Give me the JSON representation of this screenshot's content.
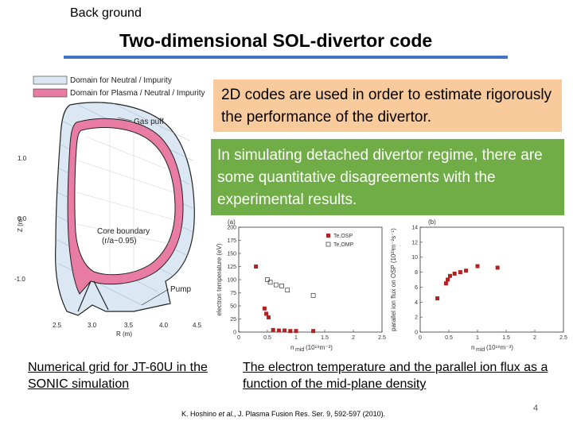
{
  "slide": {
    "section_label": "Back ground",
    "title": "Two-dimensional SOL-divertor code",
    "page_number": "4"
  },
  "grid_figure": {
    "legend": [
      "Domain for Neutral / Impurity",
      "Domain for Plasma / Neutral / Impurity"
    ],
    "labels": {
      "gas_puff": "Gas puff",
      "core_boundary_1": "Core boundary",
      "core_boundary_2": "(r/a~0.95)",
      "pump": "Pump"
    },
    "y_axis_label": "Z (m)",
    "x_axis_label": "R (m)",
    "y_ticks": [
      "1.0",
      "0.0",
      "-1.0"
    ],
    "x_ticks": [
      "2.5",
      "3.0",
      "3.5",
      "4.0",
      "4.5"
    ],
    "colors": {
      "neutral": "#dbe8f3",
      "plasma": "#e87ca3",
      "edge": "#222222"
    }
  },
  "notes": {
    "box1": "2D codes are used in order to estimate rigorously the performance of the divertor.",
    "box2": "In simulating detached divertor regime, there are some quantitative disagreements with the experimental results.",
    "box1_color": "#f9cb9c",
    "box2_color": "#70ad47"
  },
  "chart_data": [
    {
      "type": "scatter",
      "panel_label": "(a)",
      "ylabel": "electron temperature (eV)",
      "xlabel_main": "n",
      "xlabel_sub": "mid",
      "xlabel_unit": "(10¹⁹m⁻³)",
      "xlim": [
        0,
        2.5
      ],
      "ylim": [
        0,
        200
      ],
      "x_ticks": [
        "0",
        "0.5",
        "1",
        "1.5",
        "2",
        "2.5"
      ],
      "y_ticks": [
        "0",
        "25",
        "50",
        "75",
        "100",
        "125",
        "150",
        "175",
        "200"
      ],
      "legend": [
        "Te,OSP",
        "Te,OMP"
      ],
      "series": [
        {
          "name": "Te,OSP",
          "marker": "filled-square",
          "color": "#b22222",
          "x": [
            0.3,
            0.45,
            0.48,
            0.52,
            0.6,
            0.7,
            0.8,
            0.9,
            1.0,
            1.3
          ],
          "y": [
            125,
            45,
            35,
            28,
            4,
            3,
            3,
            2,
            2,
            2
          ]
        },
        {
          "name": "Te,OMP",
          "marker": "open-square",
          "color": "#333333",
          "x": [
            0.5,
            0.55,
            0.65,
            0.75,
            0.85,
            1.3
          ],
          "y": [
            100,
            95,
            90,
            88,
            80,
            70
          ]
        }
      ]
    },
    {
      "type": "scatter",
      "panel_label": "(b)",
      "ylabel": "parallel ion flux on OSP (10²³m⁻²s⁻¹)",
      "xlabel_main": "n",
      "xlabel_sub": "mid",
      "xlabel_unit": "(10¹⁹m⁻³)",
      "xlim": [
        0,
        2.5
      ],
      "ylim": [
        0,
        14
      ],
      "x_ticks": [
        "0",
        "0.5",
        "1",
        "1.5",
        "2",
        "2.5"
      ],
      "y_ticks": [
        "0",
        "2",
        "4",
        "6",
        "8",
        "10",
        "12",
        "14"
      ],
      "series": [
        {
          "name": "",
          "marker": "filled-square",
          "color": "#b22222",
          "x": [
            0.3,
            0.45,
            0.48,
            0.52,
            0.6,
            0.7,
            0.8,
            1.0,
            1.35
          ],
          "y": [
            4.5,
            6.5,
            7.0,
            7.5,
            7.8,
            8.0,
            8.2,
            8.8,
            8.6
          ]
        }
      ]
    }
  ],
  "captions": {
    "left": "Numerical grid for JT-60U in the SONIC simulation",
    "right": "The electron temperature and the parallel ion flux as a function of the mid-plane density"
  },
  "citation": {
    "prefix": "K. Hoshino ",
    "etal": "et al.",
    "suffix": ", J. Plasma Fusion Res. Ser. 9, 592-597 (2010)."
  }
}
